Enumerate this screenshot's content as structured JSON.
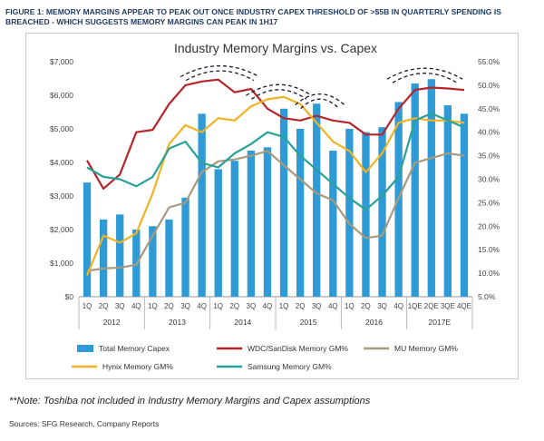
{
  "figure_title": "FIGURE 1: MEMORY MARGINS APPEAR TO PEAK OUT ONCE INDUSTRY CAPEX THRESHOLD OF >$5B IN QUARTERLY SPENDING IS BREACHED - WHICH SUGGESTS MEMORY MARGINS CAN PEAK IN 1H17",
  "note": "**Note: Toshiba not included in Industry Memory Margins and Capex assumptions",
  "source": "Sources: SFG Research, Company Reports",
  "chart_data": {
    "type": "bar",
    "title": "Industry Memory Margins vs. Capex",
    "categories": [
      "1Q",
      "2Q",
      "3Q",
      "4Q",
      "1Q",
      "2Q",
      "3Q",
      "4Q",
      "1Q",
      "2Q",
      "3Q",
      "4Q",
      "1Q",
      "2Q",
      "3Q",
      "4Q",
      "1Q",
      "2Q",
      "3Q",
      "4Q",
      "1QE",
      "2QE",
      "3QE",
      "4QE"
    ],
    "year_groups": [
      {
        "label": "2012",
        "span": 4
      },
      {
        "label": "2013",
        "span": 4
      },
      {
        "label": "2014",
        "span": 4
      },
      {
        "label": "2015",
        "span": 4
      },
      {
        "label": "2016",
        "span": 4
      },
      {
        "label": "2017E",
        "span": 4
      }
    ],
    "y_left": {
      "min": 0,
      "max": 7000,
      "step": 1000,
      "ticks": [
        "$0",
        "$1,000",
        "$2,000",
        "$3,000",
        "$4,000",
        "$5,000",
        "$6,000",
        "$7,000"
      ]
    },
    "y_right": {
      "min": 5,
      "max": 55,
      "step": 5,
      "ticks": [
        "5.0%",
        "10.0%",
        "15.0%",
        "20.0%",
        "25.0%",
        "30.0%",
        "35.0%",
        "40.0%",
        "45.0%",
        "50.0%",
        "55.0%"
      ]
    },
    "colors": {
      "bars": "#2e9bd6",
      "wdc": "#b5262b",
      "mu": "#a89a7e",
      "hynix": "#f0b323",
      "samsung": "#2aa198",
      "dash": "#1a1a2e"
    },
    "series": [
      {
        "name": "Total Memory Capex",
        "kind": "bar",
        "axis": "left",
        "values": [
          3400,
          2300,
          2450,
          2000,
          2100,
          2300,
          2950,
          5450,
          3800,
          4050,
          4350,
          4450,
          5600,
          5000,
          5750,
          4350,
          5000,
          4900,
          5050,
          5800,
          6350,
          6480,
          5700,
          5450
        ]
      },
      {
        "name": "WDC/SanDisk Memory GM%",
        "kind": "line",
        "axis": "right",
        "values": [
          34,
          28,
          31,
          40,
          40.5,
          46,
          50,
          50.8,
          51.2,
          48.5,
          49.2,
          45,
          43,
          42.5,
          43.5,
          42.5,
          42,
          39.5,
          39.5,
          45,
          49,
          49.5,
          49.3,
          49
        ]
      },
      {
        "name": "MU Memory GM%",
        "kind": "line",
        "axis": "right",
        "values": [
          10.5,
          11,
          11.2,
          11.8,
          18,
          24,
          25,
          31.5,
          33.8,
          34.2,
          35,
          36,
          33,
          30,
          27,
          25.5,
          20.5,
          17.5,
          18,
          26,
          33.5,
          34.5,
          35.5,
          35
        ]
      },
      {
        "name": "Hynix Memory GM%",
        "kind": "line",
        "axis": "right",
        "values": [
          9.5,
          18,
          16.5,
          18.5,
          27,
          37.5,
          41.5,
          40,
          43,
          42.5,
          45.5,
          47,
          47.5,
          46,
          42,
          38,
          36,
          31.5,
          35.5,
          42,
          43,
          42.5,
          42.5,
          42
        ]
      },
      {
        "name": "Samsung Memory GM%",
        "kind": "line",
        "axis": "right",
        "values": [
          32.5,
          30.5,
          30,
          28.5,
          30.5,
          36.5,
          38,
          33.5,
          32.5,
          35.5,
          37.5,
          40,
          39,
          35,
          32,
          29,
          26,
          23.5,
          26.5,
          30.5,
          42.5,
          44,
          42.5,
          41
        ]
      }
    ],
    "legend": {
      "placement": "bottom",
      "entries": [
        "Total Memory Capex",
        "WDC/SanDisk Memory GM%",
        "MU Memory GM%",
        "Hynix Memory GM%",
        "Samsung Memory GM%"
      ]
    },
    "annotations": {
      "dashed_peak_arcs": 4
    }
  }
}
